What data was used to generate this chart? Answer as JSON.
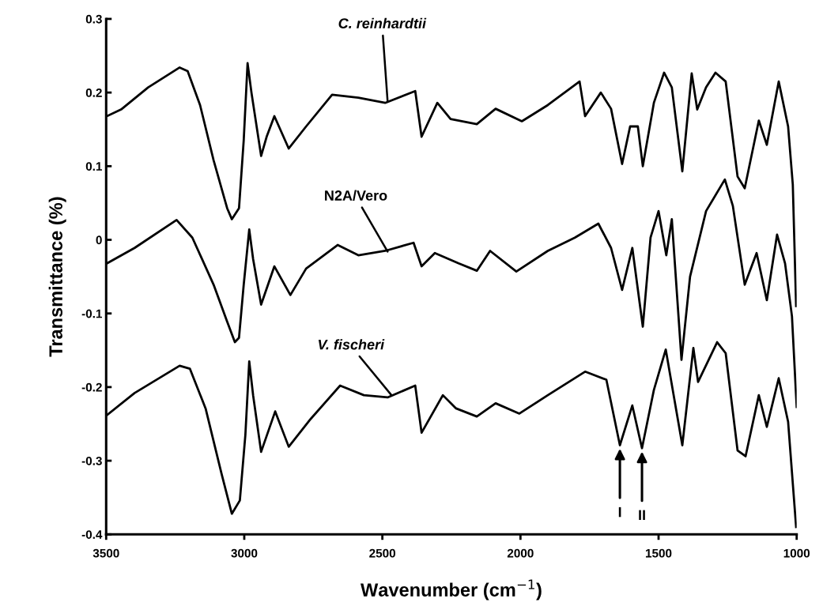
{
  "chart_data": {
    "type": "line",
    "xlabel": "Wavenumber (cm$^{−1}$)",
    "ylabel": "Transmittance (%)",
    "xlim": [
      3500,
      1000
    ],
    "xticks": [
      3500,
      3000,
      2500,
      2000,
      1500,
      1000
    ],
    "ylim": [
      -0.4,
      0.3
    ],
    "yticks": [
      0.3,
      0.2,
      0.1,
      0,
      -0.1,
      -0.2,
      -0.3,
      -0.4
    ],
    "grid": false,
    "marker": "none",
    "line_style": "solid",
    "series": [
      {
        "color": "#000000",
        "x": [
          3497,
          3446,
          3348,
          3234,
          3205,
          3160,
          3111,
          3062,
          3045,
          3019,
          3002,
          2988,
          2974,
          2939,
          2919,
          2891,
          2839,
          2776,
          2682,
          2587,
          2490,
          2381,
          2358,
          2301,
          2253,
          2158,
          2090,
          1995,
          1901,
          1786,
          1766,
          1709,
          1672,
          1632,
          1603,
          1575,
          1557,
          1517,
          1480,
          1452,
          1414,
          1380,
          1360,
          1328,
          1294,
          1257,
          1214,
          1188,
          1137,
          1108,
          1065,
          1031,
          1014,
          1002
        ],
        "values": [
          0.168,
          0.177,
          0.207,
          0.234,
          0.229,
          0.183,
          0.108,
          0.043,
          0.028,
          0.043,
          0.135,
          0.24,
          0.2,
          0.114,
          0.14,
          0.168,
          0.124,
          0.154,
          0.197,
          0.193,
          0.186,
          0.202,
          0.14,
          0.186,
          0.164,
          0.157,
          0.178,
          0.161,
          0.183,
          0.215,
          0.168,
          0.2,
          0.178,
          0.103,
          0.154,
          0.154,
          0.1,
          0.186,
          0.227,
          0.207,
          0.093,
          0.226,
          0.177,
          0.207,
          0.227,
          0.215,
          0.086,
          0.07,
          0.162,
          0.129,
          0.215,
          0.154,
          0.075,
          -0.09
        ]
      },
      {
        "color": "#000000",
        "x": [
          3497,
          3397,
          3245,
          3188,
          3111,
          3062,
          3034,
          3019,
          3002,
          2982,
          2968,
          2939,
          2891,
          2833,
          2776,
          2662,
          2587,
          2490,
          2387,
          2358,
          2310,
          2224,
          2158,
          2110,
          2015,
          1901,
          1803,
          1718,
          1672,
          1632,
          1595,
          1557,
          1529,
          1500,
          1472,
          1452,
          1417,
          1386,
          1328,
          1260,
          1231,
          1188,
          1145,
          1108,
          1071,
          1042,
          1017,
          1000
        ],
        "values": [
          -0.032,
          -0.011,
          0.027,
          0.003,
          -0.061,
          -0.111,
          -0.139,
          -0.133,
          -0.061,
          0.014,
          -0.026,
          -0.088,
          -0.036,
          -0.075,
          -0.039,
          -0.007,
          -0.021,
          -0.015,
          -0.004,
          -0.036,
          -0.018,
          -0.032,
          -0.042,
          -0.015,
          -0.043,
          -0.015,
          0.003,
          0.022,
          -0.011,
          -0.068,
          -0.011,
          -0.118,
          0.003,
          0.039,
          -0.021,
          0.028,
          -0.163,
          -0.05,
          0.039,
          0.082,
          0.046,
          -0.061,
          -0.018,
          -0.082,
          0.007,
          -0.032,
          -0.104,
          -0.227
        ]
      },
      {
        "color": "#000000",
        "x": [
          3497,
          3397,
          3234,
          3197,
          3140,
          3082,
          3045,
          3016,
          2996,
          2982,
          2968,
          2939,
          2888,
          2839,
          2759,
          2653,
          2567,
          2481,
          2381,
          2358,
          2281,
          2233,
          2158,
          2090,
          2004,
          1901,
          1766,
          1689,
          1640,
          1595,
          1560,
          1517,
          1474,
          1414,
          1374,
          1357,
          1288,
          1257,
          1214,
          1185,
          1137,
          1108,
          1065,
          1031,
          1002
        ],
        "values": [
          -0.238,
          -0.208,
          -0.171,
          -0.175,
          -0.229,
          -0.318,
          -0.372,
          -0.354,
          -0.265,
          -0.165,
          -0.211,
          -0.288,
          -0.233,
          -0.281,
          -0.243,
          -0.198,
          -0.211,
          -0.214,
          -0.198,
          -0.262,
          -0.211,
          -0.229,
          -0.24,
          -0.222,
          -0.236,
          -0.211,
          -0.179,
          -0.19,
          -0.279,
          -0.225,
          -0.283,
          -0.204,
          -0.149,
          -0.279,
          -0.147,
          -0.193,
          -0.139,
          -0.154,
          -0.286,
          -0.294,
          -0.211,
          -0.254,
          -0.188,
          -0.247,
          -0.39
        ]
      }
    ],
    "annotations": [
      {
        "text": "C. reinhardtii",
        "x": 2481,
        "y": 0.188
      },
      {
        "text": "N2A/Vero",
        "x": 2481,
        "y": -0.016
      },
      {
        "text": "V. fischeri",
        "x": 2467,
        "y": -0.211
      },
      {
        "text": "I",
        "x": 1640,
        "y": -0.279
      },
      {
        "text": "II",
        "x": 1560,
        "y": -0.283
      }
    ]
  }
}
